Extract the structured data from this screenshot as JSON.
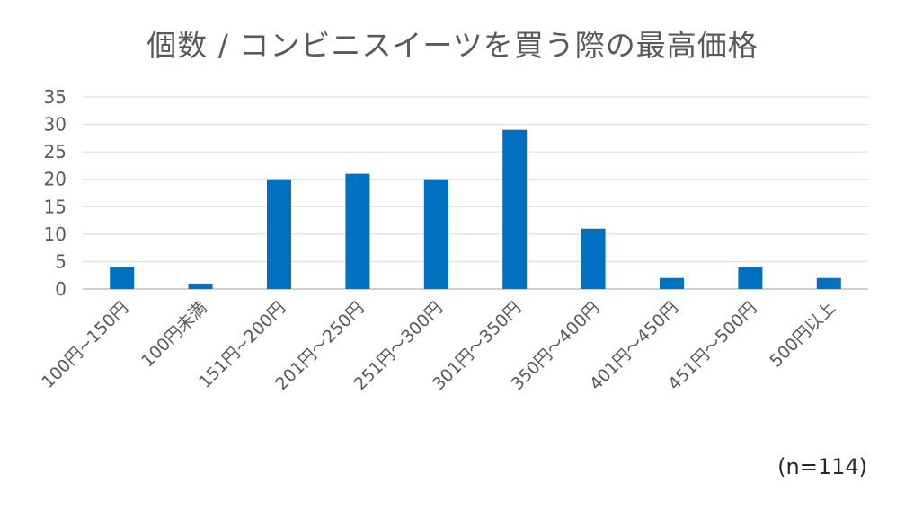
{
  "chart_data": {
    "type": "bar",
    "title": "個数 / コンビニスイーツを買う際の最高価格",
    "categories": [
      "100円~150円",
      "100円未満",
      "151円~200円",
      "201円～250円",
      "251円～300円",
      "301円～350円",
      "350円～400円",
      "401円～450円",
      "451円～500円",
      "500円以上"
    ],
    "values": [
      4,
      1,
      20,
      21,
      20,
      29,
      11,
      2,
      4,
      2
    ],
    "ylim": [
      0,
      35
    ],
    "yticks": [
      0,
      5,
      10,
      15,
      20,
      25,
      30,
      35
    ],
    "xlabel": "",
    "ylabel": "",
    "grid": true,
    "legend": "none",
    "bar_color": "#0070C0",
    "grid_color": "#D9D9D9",
    "axis_color": "#BFBFBF",
    "note": "(n=114)"
  }
}
